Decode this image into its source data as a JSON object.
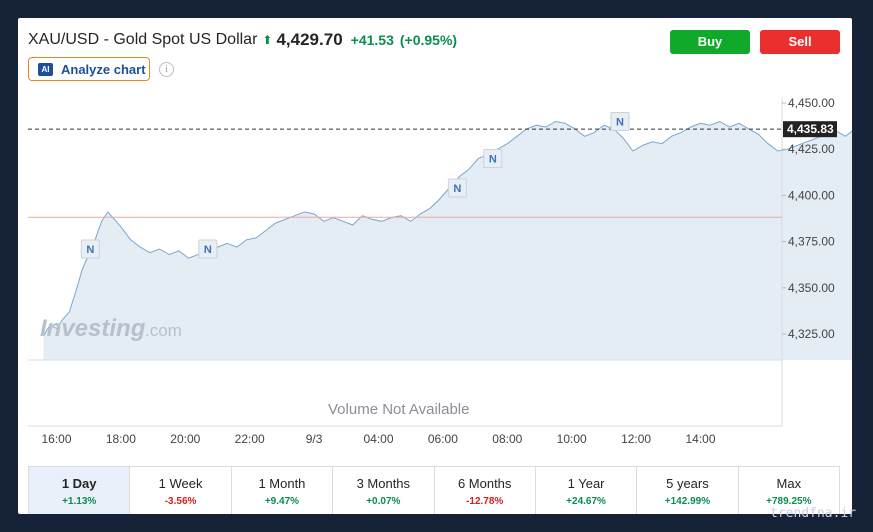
{
  "header": {
    "instrument": "XAU/USD - Gold Spot US Dollar",
    "price": "4,429.70",
    "change": "+41.53",
    "change_pct": "(+0.95%)"
  },
  "buttons": {
    "buy": "Buy",
    "sell": "Sell"
  },
  "analyze": {
    "badge": "AI",
    "label": "Analyze chart",
    "info": "i"
  },
  "chart_data": {
    "type": "area",
    "title": "",
    "xlabel": "",
    "ylabel": "",
    "x_ticks": [
      "16:00",
      "18:00",
      "20:00",
      "22:00",
      "9/3",
      "04:00",
      "06:00",
      "08:00",
      "10:00",
      "12:00",
      "14:00"
    ],
    "y_ticks": [
      "4,450.00",
      "4,425.00",
      "4,400.00",
      "4,375.00",
      "4,350.00",
      "4,325.00"
    ],
    "ylim": [
      4312,
      4452
    ],
    "current_price_label": "4,435.83",
    "current_price": 4435.83,
    "previous_close": 4388.2,
    "grid": false,
    "news_markers": [
      {
        "label": "N",
        "hour": 17.05,
        "value": 4371
      },
      {
        "label": "N",
        "hour": 20.7,
        "value": 4371
      },
      {
        "label": "N",
        "hour": 28.45,
        "value": 4404
      },
      {
        "label": "N",
        "hour": 29.55,
        "value": 4420
      },
      {
        "label": "N",
        "hour": 33.5,
        "value": 4440
      }
    ],
    "series": [
      {
        "x_hours": [
          15.6,
          15.8,
          16.0,
          16.2,
          16.4,
          16.6,
          16.8,
          17.0,
          17.2,
          17.4,
          17.6,
          17.8,
          18.0,
          18.3,
          18.6,
          18.9,
          19.2,
          19.5,
          19.8,
          20.1,
          20.4,
          20.7,
          21.0,
          21.3,
          21.6,
          21.9,
          22.2,
          22.5,
          22.8,
          23.1,
          23.4,
          23.7,
          24.0,
          24.3,
          24.6,
          24.9,
          25.2,
          25.5,
          25.8,
          26.1,
          26.4,
          26.7,
          27.0,
          27.3,
          27.6,
          27.9,
          28.2,
          28.5,
          28.8,
          29.1,
          29.4,
          29.7,
          30.0,
          30.3,
          30.6,
          30.9,
          31.2,
          31.5,
          31.8,
          32.1,
          32.4,
          32.7,
          33.0,
          33.3,
          33.6,
          33.9,
          34.2,
          34.5,
          34.8,
          35.1,
          35.4,
          35.7,
          36.0,
          36.3,
          36.6,
          36.9,
          37.2,
          37.5,
          37.8,
          38.1,
          38.4,
          38.7,
          39.0,
          39.3,
          39.6,
          39.9,
          40.2,
          40.5,
          40.8,
          41.0
        ],
        "values": [
          4324,
          4330,
          4328,
          4333,
          4337,
          4348,
          4360,
          4368,
          4376,
          4386,
          4391,
          4387,
          4383,
          4376,
          4372,
          4369,
          4371,
          4368,
          4370,
          4366,
          4368,
          4367,
          4372,
          4374,
          4372,
          4376,
          4377,
          4381,
          4385,
          4387,
          4389,
          4391,
          4390,
          4386,
          4388,
          4386,
          4384,
          4389,
          4387,
          4386,
          4388,
          4389,
          4386,
          4390,
          4393,
          4398,
          4404,
          4410,
          4414,
          4420,
          4422,
          4425,
          4428,
          4432,
          4436,
          4438,
          4437,
          4440,
          4439,
          4436,
          4432,
          4434,
          4438,
          4436,
          4431,
          4424,
          4427,
          4429,
          4428,
          4432,
          4434,
          4437,
          4439,
          4438,
          4440,
          4437,
          4439,
          4436,
          4433,
          4428,
          4424,
          4425,
          4427,
          4429,
          4431,
          4433,
          4435,
          4432,
          4436,
          4436
        ]
      }
    ]
  },
  "volume_label": "Volume Not Available",
  "brand": {
    "name": "Investing",
    "suffix": ".com"
  },
  "periods": [
    {
      "label": "1 Day",
      "change": "+1.13%",
      "dir": "up",
      "active": true
    },
    {
      "label": "1 Week",
      "change": "-3.56%",
      "dir": "down",
      "active": false
    },
    {
      "label": "1 Month",
      "change": "+9.47%",
      "dir": "up",
      "active": false
    },
    {
      "label": "3 Months",
      "change": "+0.07%",
      "dir": "up",
      "active": false
    },
    {
      "label": "6 Months",
      "change": "-12.78%",
      "dir": "down",
      "active": false
    },
    {
      "label": "1 Year",
      "change": "+24.67%",
      "dir": "up",
      "active": false
    },
    {
      "label": "5 years",
      "change": "+142.99%",
      "dir": "up",
      "active": false
    },
    {
      "label": "Max",
      "change": "+789.25%",
      "dir": "up",
      "active": false
    }
  ],
  "watermark": "trendfna.ir"
}
